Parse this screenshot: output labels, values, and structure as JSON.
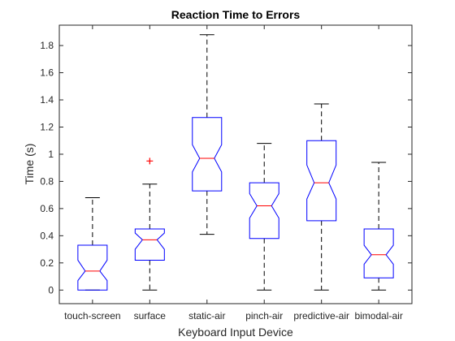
{
  "chart_data": {
    "type": "boxplot",
    "notched": true,
    "title": "Reaction Time to Errors",
    "xlabel": "Keyboard Input Device",
    "ylabel": "Time (s)",
    "ylim": [
      -0.1,
      1.95
    ],
    "yticks": [
      0,
      0.2,
      0.4,
      0.6,
      0.8,
      1,
      1.2,
      1.4,
      1.6,
      1.8
    ],
    "ytick_labels": [
      "0",
      "0.2",
      "0.4",
      "0.6",
      "0.8",
      "1",
      "1.2",
      "1.4",
      "1.6",
      "1.8"
    ],
    "categories": [
      "touch-screen",
      "surface",
      "static-air",
      "pinch-air",
      "predictive-air",
      "bimodal-air"
    ],
    "boxes": [
      {
        "whisker_low": 0.0,
        "q1": 0.0,
        "notch_low": 0.07,
        "median": 0.14,
        "notch_high": 0.22,
        "q3": 0.33,
        "whisker_high": 0.68,
        "outliers": []
      },
      {
        "whisker_low": 0.0,
        "q1": 0.22,
        "notch_low": 0.3,
        "median": 0.37,
        "notch_high": 0.42,
        "q3": 0.45,
        "whisker_high": 0.78,
        "outliers": [
          0.95
        ]
      },
      {
        "whisker_low": 0.41,
        "q1": 0.73,
        "notch_low": 0.87,
        "median": 0.97,
        "notch_high": 1.07,
        "q3": 1.27,
        "whisker_high": 1.88,
        "outliers": []
      },
      {
        "whisker_low": 0.0,
        "q1": 0.38,
        "notch_low": 0.53,
        "median": 0.62,
        "notch_high": 0.71,
        "q3": 0.79,
        "whisker_high": 1.08,
        "outliers": []
      },
      {
        "whisker_low": 0.0,
        "q1": 0.51,
        "notch_low": 0.67,
        "median": 0.79,
        "notch_high": 0.92,
        "q3": 1.1,
        "whisker_high": 1.37,
        "outliers": []
      },
      {
        "whisker_low": 0.0,
        "q1": 0.09,
        "notch_low": 0.19,
        "median": 0.26,
        "notch_high": 0.33,
        "q3": 0.45,
        "whisker_high": 0.94,
        "outliers": []
      }
    ],
    "colors": {
      "box": "#0000ff",
      "median": "#ff0000",
      "whisker": "#000000",
      "outlier": "#ff0000",
      "axis": "#262626"
    }
  }
}
